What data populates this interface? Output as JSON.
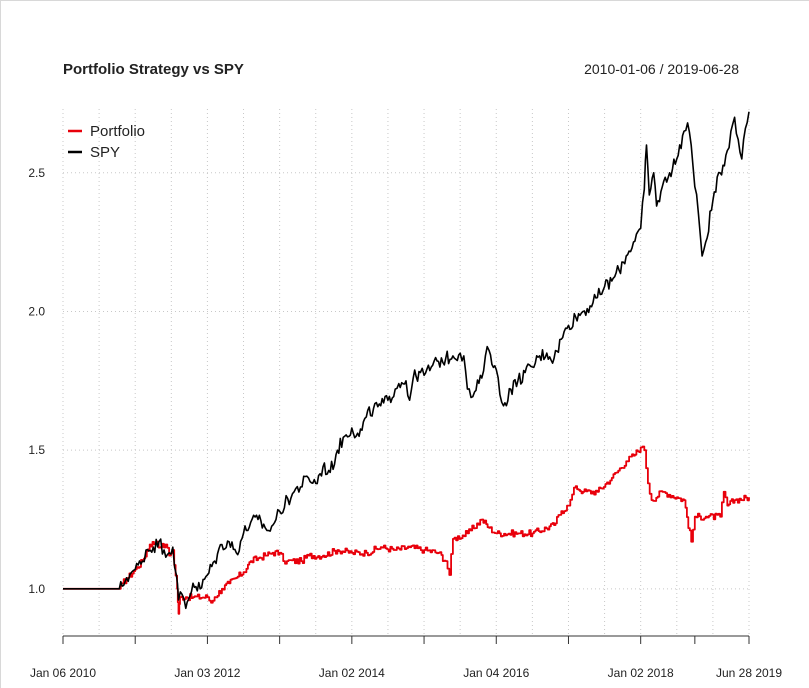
{
  "chart_data": {
    "type": "line",
    "title": "Portfolio Strategy vs SPY",
    "date_range": "2010-01-06 / 2019-06-28",
    "xlabel": "",
    "ylabel": "",
    "x_tick_labels": [
      "Jan 06 2010",
      "Jan 03 2012",
      "Jan 02 2014",
      "Jan 04 2016",
      "Jan 02 2018",
      "Jun 28 2019"
    ],
    "y_tick_labels": [
      "1.0",
      "1.5",
      "2.0",
      "2.5"
    ],
    "y_ticks": [
      1.0,
      1.5,
      2.0,
      2.5
    ],
    "ylim": [
      0.83,
      2.73
    ],
    "xlim": [
      2010.0,
      2019.5
    ],
    "grid": true,
    "legend_position": "top-left",
    "colors": {
      "portfolio": "#e8000b",
      "spy": "#000000",
      "grid": "#c8c8c8",
      "axis": "#333333"
    },
    "series": [
      {
        "name": "Portfolio",
        "color": "#e8000b",
        "points": [
          [
            2010.0,
            1.0
          ],
          [
            2010.5,
            1.0
          ],
          [
            2010.78,
            1.0
          ],
          [
            2010.82,
            1.02
          ],
          [
            2010.9,
            1.04
          ],
          [
            2011.0,
            1.07
          ],
          [
            2011.1,
            1.1
          ],
          [
            2011.2,
            1.16
          ],
          [
            2011.3,
            1.17
          ],
          [
            2011.35,
            1.15
          ],
          [
            2011.42,
            1.16
          ],
          [
            2011.47,
            1.12
          ],
          [
            2011.52,
            1.14
          ],
          [
            2011.58,
            1.0
          ],
          [
            2011.6,
            0.91
          ],
          [
            2011.62,
            0.97
          ],
          [
            2011.7,
            0.97
          ],
          [
            2011.8,
            0.97
          ],
          [
            2012.0,
            0.97
          ],
          [
            2012.05,
            0.95
          ],
          [
            2012.1,
            0.97
          ],
          [
            2012.2,
            1.0
          ],
          [
            2012.3,
            1.02
          ],
          [
            2012.4,
            1.04
          ],
          [
            2012.5,
            1.06
          ],
          [
            2012.6,
            1.1
          ],
          [
            2012.7,
            1.11
          ],
          [
            2012.8,
            1.12
          ],
          [
            2012.9,
            1.13
          ],
          [
            2013.0,
            1.13
          ],
          [
            2013.05,
            1.1
          ],
          [
            2013.1,
            1.1
          ],
          [
            2013.3,
            1.1
          ],
          [
            2013.4,
            1.12
          ],
          [
            2013.6,
            1.12
          ],
          [
            2013.8,
            1.14
          ],
          [
            2014.0,
            1.13
          ],
          [
            2014.2,
            1.13
          ],
          [
            2014.4,
            1.15
          ],
          [
            2014.6,
            1.14
          ],
          [
            2014.8,
            1.15
          ],
          [
            2015.0,
            1.14
          ],
          [
            2015.2,
            1.13
          ],
          [
            2015.3,
            1.1
          ],
          [
            2015.35,
            1.05
          ],
          [
            2015.4,
            1.18
          ],
          [
            2015.6,
            1.2
          ],
          [
            2015.8,
            1.25
          ],
          [
            2015.9,
            1.22
          ],
          [
            2016.0,
            1.2
          ],
          [
            2016.3,
            1.2
          ],
          [
            2016.5,
            1.2
          ],
          [
            2016.8,
            1.23
          ],
          [
            2016.9,
            1.28
          ],
          [
            2017.0,
            1.3
          ],
          [
            2017.05,
            1.34
          ],
          [
            2017.1,
            1.37
          ],
          [
            2017.2,
            1.35
          ],
          [
            2017.4,
            1.35
          ],
          [
            2017.6,
            1.4
          ],
          [
            2017.8,
            1.46
          ],
          [
            2017.9,
            1.48
          ],
          [
            2018.0,
            1.51
          ],
          [
            2018.05,
            1.5
          ],
          [
            2018.1,
            1.38
          ],
          [
            2018.15,
            1.32
          ],
          [
            2018.3,
            1.35
          ],
          [
            2018.5,
            1.33
          ],
          [
            2018.6,
            1.32
          ],
          [
            2018.7,
            1.17
          ],
          [
            2018.75,
            1.26
          ],
          [
            2018.9,
            1.26
          ],
          [
            2019.1,
            1.26
          ],
          [
            2019.15,
            1.35
          ],
          [
            2019.2,
            1.3
          ],
          [
            2019.3,
            1.32
          ],
          [
            2019.5,
            1.33
          ]
        ]
      },
      {
        "name": "SPY",
        "color": "#000000",
        "points": [
          [
            2010.0,
            1.0
          ],
          [
            2010.5,
            1.0
          ],
          [
            2010.78,
            1.0
          ],
          [
            2010.82,
            1.01
          ],
          [
            2010.88,
            1.04
          ],
          [
            2010.95,
            1.06
          ],
          [
            2011.0,
            1.07
          ],
          [
            2011.1,
            1.1
          ],
          [
            2011.15,
            1.14
          ],
          [
            2011.25,
            1.15
          ],
          [
            2011.33,
            1.17
          ],
          [
            2011.4,
            1.14
          ],
          [
            2011.47,
            1.13
          ],
          [
            2011.52,
            1.15
          ],
          [
            2011.57,
            1.05
          ],
          [
            2011.6,
            0.96
          ],
          [
            2011.65,
            0.98
          ],
          [
            2011.7,
            0.93
          ],
          [
            2011.8,
            1.02
          ],
          [
            2011.9,
            1.0
          ],
          [
            2012.0,
            1.05
          ],
          [
            2012.1,
            1.1
          ],
          [
            2012.2,
            1.16
          ],
          [
            2012.3,
            1.17
          ],
          [
            2012.4,
            1.13
          ],
          [
            2012.5,
            1.2
          ],
          [
            2012.6,
            1.24
          ],
          [
            2012.7,
            1.25
          ],
          [
            2012.8,
            1.22
          ],
          [
            2012.85,
            1.21
          ],
          [
            2012.95,
            1.25
          ],
          [
            2013.0,
            1.28
          ],
          [
            2013.2,
            1.35
          ],
          [
            2013.4,
            1.4
          ],
          [
            2013.5,
            1.38
          ],
          [
            2013.6,
            1.44
          ],
          [
            2013.7,
            1.42
          ],
          [
            2013.8,
            1.5
          ],
          [
            2013.9,
            1.55
          ],
          [
            2014.0,
            1.58
          ],
          [
            2014.1,
            1.55
          ],
          [
            2014.2,
            1.62
          ],
          [
            2014.3,
            1.65
          ],
          [
            2014.4,
            1.66
          ],
          [
            2014.5,
            1.68
          ],
          [
            2014.6,
            1.72
          ],
          [
            2014.65,
            1.74
          ],
          [
            2014.75,
            1.75
          ],
          [
            2014.8,
            1.68
          ],
          [
            2014.85,
            1.76
          ],
          [
            2014.95,
            1.78
          ],
          [
            2015.0,
            1.77
          ],
          [
            2015.1,
            1.8
          ],
          [
            2015.2,
            1.82
          ],
          [
            2015.3,
            1.83
          ],
          [
            2015.4,
            1.84
          ],
          [
            2015.5,
            1.85
          ],
          [
            2015.55,
            1.84
          ],
          [
            2015.6,
            1.72
          ],
          [
            2015.65,
            1.69
          ],
          [
            2015.7,
            1.71
          ],
          [
            2015.8,
            1.76
          ],
          [
            2015.85,
            1.84
          ],
          [
            2015.9,
            1.86
          ],
          [
            2016.0,
            1.79
          ],
          [
            2016.05,
            1.7
          ],
          [
            2016.1,
            1.66
          ],
          [
            2016.2,
            1.72
          ],
          [
            2016.3,
            1.75
          ],
          [
            2016.4,
            1.78
          ],
          [
            2016.5,
            1.8
          ],
          [
            2016.6,
            1.84
          ],
          [
            2016.7,
            1.85
          ],
          [
            2016.8,
            1.83
          ],
          [
            2016.9,
            1.9
          ],
          [
            2017.0,
            1.95
          ],
          [
            2017.1,
            1.98
          ],
          [
            2017.2,
            2.0
          ],
          [
            2017.3,
            2.02
          ],
          [
            2017.4,
            2.05
          ],
          [
            2017.5,
            2.09
          ],
          [
            2017.6,
            2.11
          ],
          [
            2017.7,
            2.15
          ],
          [
            2017.8,
            2.2
          ],
          [
            2017.9,
            2.25
          ],
          [
            2018.0,
            2.3
          ],
          [
            2018.05,
            2.44
          ],
          [
            2018.08,
            2.6
          ],
          [
            2018.12,
            2.42
          ],
          [
            2018.18,
            2.5
          ],
          [
            2018.22,
            2.38
          ],
          [
            2018.3,
            2.45
          ],
          [
            2018.4,
            2.5
          ],
          [
            2018.5,
            2.55
          ],
          [
            2018.6,
            2.65
          ],
          [
            2018.65,
            2.68
          ],
          [
            2018.7,
            2.6
          ],
          [
            2018.75,
            2.45
          ],
          [
            2018.8,
            2.35
          ],
          [
            2018.85,
            2.2
          ],
          [
            2018.9,
            2.25
          ],
          [
            2019.0,
            2.4
          ],
          [
            2019.1,
            2.5
          ],
          [
            2019.2,
            2.58
          ],
          [
            2019.25,
            2.65
          ],
          [
            2019.3,
            2.7
          ],
          [
            2019.35,
            2.62
          ],
          [
            2019.4,
            2.55
          ],
          [
            2019.45,
            2.66
          ],
          [
            2019.5,
            2.72
          ]
        ]
      }
    ]
  }
}
